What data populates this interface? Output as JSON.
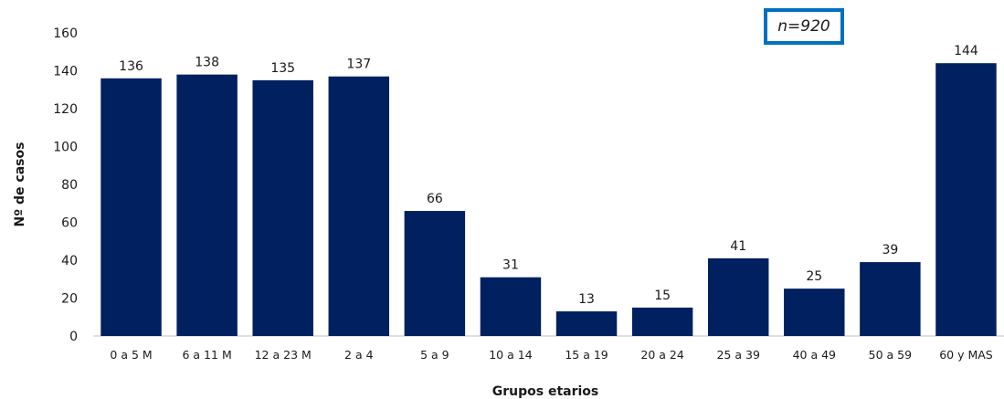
{
  "chart_data": {
    "type": "bar",
    "categories": [
      "0 a 5 M",
      "6 a 11 M",
      "12 a 23 M",
      "2 a 4",
      "5 a 9",
      "10 a 14",
      "15 a 19",
      "20 a 24",
      "25 a 39",
      "40 a 49",
      "50 a 59",
      "60 y MAS"
    ],
    "values": [
      136,
      138,
      135,
      137,
      66,
      31,
      13,
      15,
      41,
      25,
      39,
      144
    ],
    "xlabel": "Grupos etarios",
    "ylabel": "Nº de casos",
    "ylim": [
      0,
      160
    ],
    "yticks": [
      0,
      20,
      40,
      60,
      80,
      100,
      120,
      140,
      160
    ],
    "bar_color": "#002060",
    "grid": false,
    "legend": "none",
    "annotation": "n=920"
  }
}
